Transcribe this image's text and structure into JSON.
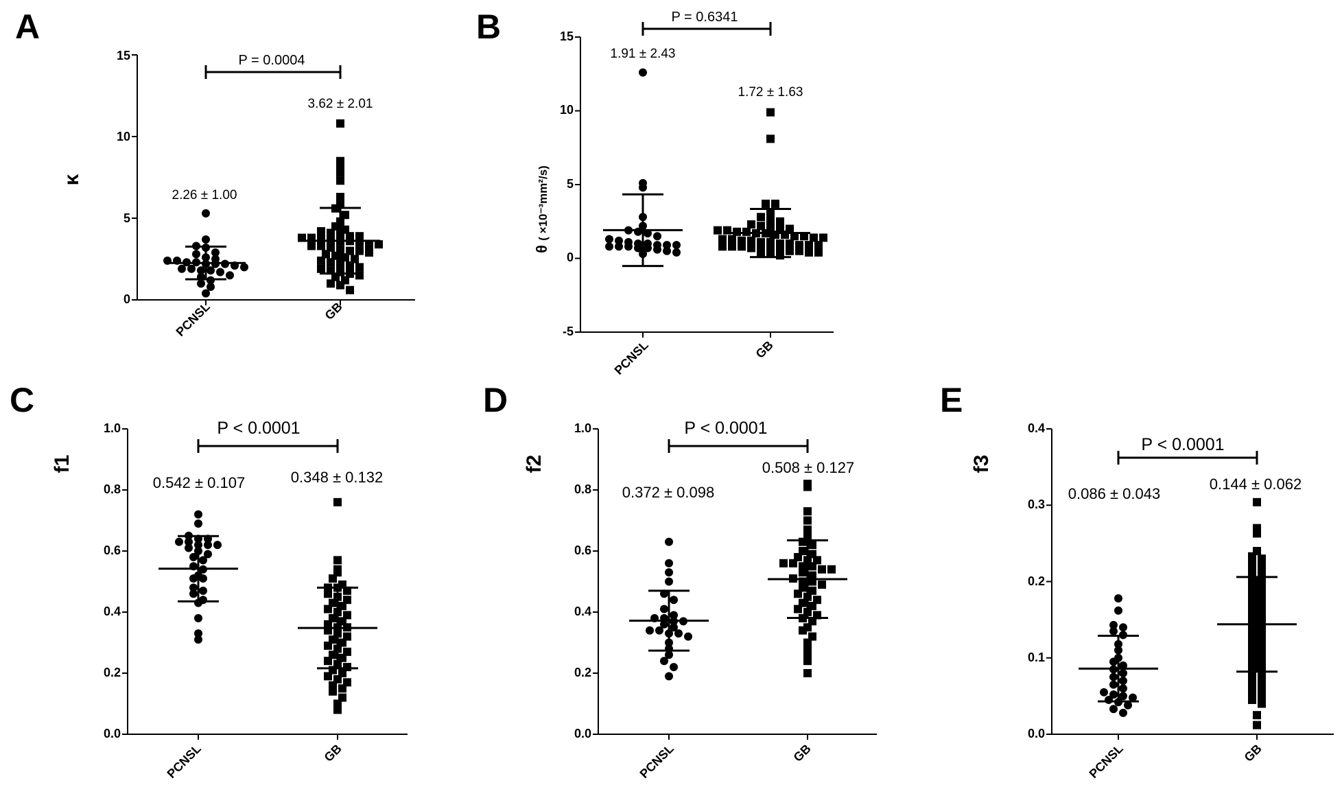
{
  "figure": {
    "chart_data": [
      {
        "panel": "A",
        "type": "scatter",
        "ylabel": "κ",
        "ylim": [
          0,
          15
        ],
        "yticks": [
          "0",
          "5",
          "10",
          "15"
        ],
        "categories": [
          "PCNSL",
          "GB"
        ],
        "p_value": "P = 0.0004",
        "series": [
          {
            "name": "PCNSL",
            "marker": "circle",
            "mean": 2.26,
            "sd": 1.0,
            "annotation": "2.26 ± 1.00",
            "values": [
              5.3,
              3.7,
              3.3,
              3.2,
              2.9,
              2.8,
              2.6,
              2.5,
              2.4,
              2.4,
              2.3,
              2.3,
              2.2,
              2.2,
              2.2,
              2.1,
              2.0,
              1.9,
              1.9,
              1.8,
              1.8,
              1.7,
              1.5,
              1.4,
              1.2,
              1.0,
              0.8,
              0.4
            ]
          },
          {
            "name": "GB",
            "marker": "square",
            "mean": 3.62,
            "sd": 2.01,
            "annotation": "3.62 ± 2.01",
            "values": [
              10.8,
              8.5,
              8.2,
              7.8,
              7.3,
              6.3,
              5.9,
              5.6,
              5.2,
              4.8,
              4.5,
              4.3,
              4.2,
              4.1,
              4.0,
              3.9,
              3.9,
              3.8,
              3.8,
              3.7,
              3.7,
              3.6,
              3.6,
              3.5,
              3.4,
              3.4,
              3.3,
              3.3,
              3.2,
              3.1,
              3.0,
              3.0,
              2.9,
              2.8,
              2.7,
              2.6,
              2.5,
              2.4,
              2.3,
              2.2,
              2.1,
              2.0,
              1.9,
              1.8,
              1.7,
              1.6,
              1.5,
              1.4,
              1.2,
              1.0,
              0.9,
              0.6
            ]
          }
        ]
      },
      {
        "panel": "B",
        "type": "scatter",
        "ylabel_symbol": "θ",
        "ylabel_unit": "( ×10⁻³mm²/s)",
        "ylim": [
          -5,
          15
        ],
        "yticks": [
          "-5",
          "0",
          "5",
          "10",
          "15"
        ],
        "categories": [
          "PCNSL",
          "GB"
        ],
        "p_value": "P = 0.6341",
        "series": [
          {
            "name": "PCNSL",
            "marker": "circle",
            "mean": 1.91,
            "sd": 2.43,
            "annotation": "1.91 ± 2.43",
            "values": [
              12.6,
              5.1,
              4.8,
              2.8,
              2.2,
              1.9,
              1.8,
              1.7,
              1.5,
              1.3,
              1.2,
              1.1,
              1.0,
              1.0,
              0.9,
              0.9,
              0.9,
              0.8,
              0.8,
              0.8,
              0.7,
              0.7,
              0.6,
              0.5,
              0.4,
              0.3
            ]
          },
          {
            "name": "GB",
            "marker": "square",
            "mean": 1.72,
            "sd": 1.63,
            "annotation": "1.72 ± 1.63",
            "values": [
              9.9,
              8.1,
              3.7,
              3.7,
              3.0,
              2.8,
              2.6,
              2.5,
              2.3,
              2.2,
              2.1,
              2.0,
              2.0,
              1.9,
              1.9,
              1.8,
              1.8,
              1.7,
              1.7,
              1.6,
              1.6,
              1.5,
              1.5,
              1.4,
              1.4,
              1.3,
              1.3,
              1.2,
              1.2,
              1.1,
              1.1,
              1.0,
              1.0,
              0.9,
              0.9,
              0.9,
              0.8,
              0.8,
              0.8,
              0.7,
              0.7,
              0.6,
              0.6,
              0.5,
              0.5,
              0.4,
              0.4,
              0.3,
              0.3,
              0.2
            ]
          }
        ]
      },
      {
        "panel": "C",
        "type": "scatter",
        "ylabel": "f1",
        "ylim": [
          0,
          1
        ],
        "yticks": [
          "0.0",
          "0.2",
          "0.4",
          "0.6",
          "0.8",
          "1.0"
        ],
        "categories": [
          "PCNSL",
          "GB"
        ],
        "p_value": "P < 0.0001",
        "series": [
          {
            "name": "PCNSL",
            "marker": "circle",
            "mean": 0.542,
            "sd": 0.107,
            "annotation": "0.542 ± 0.107",
            "values": [
              0.72,
              0.69,
              0.65,
              0.64,
              0.64,
              0.63,
              0.63,
              0.62,
              0.62,
              0.62,
              0.61,
              0.6,
              0.59,
              0.58,
              0.57,
              0.55,
              0.54,
              0.52,
              0.51,
              0.51,
              0.48,
              0.47,
              0.46,
              0.44,
              0.43,
              0.38,
              0.33,
              0.31
            ]
          },
          {
            "name": "GB",
            "marker": "square",
            "mean": 0.348,
            "sd": 0.132,
            "annotation": "0.348 ± 0.132",
            "values": [
              0.76,
              0.57,
              0.54,
              0.53,
              0.51,
              0.49,
              0.48,
              0.48,
              0.47,
              0.46,
              0.45,
              0.44,
              0.43,
              0.42,
              0.41,
              0.4,
              0.39,
              0.38,
              0.37,
              0.36,
              0.35,
              0.35,
              0.34,
              0.33,
              0.32,
              0.31,
              0.3,
              0.29,
              0.28,
              0.27,
              0.26,
              0.25,
              0.24,
              0.23,
              0.22,
              0.21,
              0.2,
              0.19,
              0.18,
              0.17,
              0.16,
              0.15,
              0.14,
              0.12,
              0.1,
              0.08
            ]
          }
        ]
      },
      {
        "panel": "D",
        "type": "scatter",
        "ylabel": "f2",
        "ylim": [
          0,
          1
        ],
        "yticks": [
          "0.0",
          "0.2",
          "0.4",
          "0.6",
          "0.8",
          "1.0"
        ],
        "categories": [
          "PCNSL",
          "GB"
        ],
        "p_value": "P < 0.0001",
        "series": [
          {
            "name": "PCNSL",
            "marker": "circle",
            "mean": 0.372,
            "sd": 0.098,
            "annotation": "0.372 ± 0.098",
            "values": [
              0.63,
              0.56,
              0.53,
              0.5,
              0.46,
              0.44,
              0.41,
              0.39,
              0.38,
              0.38,
              0.37,
              0.37,
              0.36,
              0.35,
              0.34,
              0.34,
              0.33,
              0.33,
              0.32,
              0.3,
              0.28,
              0.26,
              0.24,
              0.22,
              0.19
            ]
          },
          {
            "name": "GB",
            "marker": "square",
            "mean": 0.508,
            "sd": 0.127,
            "annotation": "0.508 ± 0.127",
            "values": [
              0.82,
              0.81,
              0.73,
              0.7,
              0.67,
              0.65,
              0.63,
              0.62,
              0.6,
              0.59,
              0.58,
              0.57,
              0.57,
              0.56,
              0.56,
              0.55,
              0.55,
              0.54,
              0.54,
              0.53,
              0.52,
              0.51,
              0.5,
              0.5,
              0.49,
              0.48,
              0.47,
              0.46,
              0.45,
              0.44,
              0.43,
              0.42,
              0.41,
              0.4,
              0.39,
              0.38,
              0.37,
              0.35,
              0.34,
              0.32,
              0.3,
              0.28,
              0.26,
              0.24,
              0.2
            ]
          }
        ]
      },
      {
        "panel": "E",
        "type": "scatter",
        "ylabel": "f3",
        "ylim": [
          0,
          0.4
        ],
        "yticks": [
          "0.0",
          "0.1",
          "0.2",
          "0.3",
          "0.4"
        ],
        "categories": [
          "PCNSL",
          "GB"
        ],
        "p_value": "P < 0.0001",
        "series": [
          {
            "name": "PCNSL",
            "marker": "circle",
            "mean": 0.086,
            "sd": 0.043,
            "annotation": "0.086 ± 0.043",
            "values": [
              0.178,
              0.162,
              0.143,
              0.14,
              0.135,
              0.13,
              0.118,
              0.11,
              0.1,
              0.095,
              0.09,
              0.085,
              0.08,
              0.075,
              0.07,
              0.065,
              0.06,
              0.055,
              0.052,
              0.05,
              0.048,
              0.045,
              0.042,
              0.038,
              0.033,
              0.028
            ]
          },
          {
            "name": "GB",
            "marker": "square",
            "mean": 0.144,
            "sd": 0.062,
            "annotation": "0.144 ± 0.062",
            "values": [
              0.304,
              0.27,
              0.263,
              0.24,
              0.233,
              0.23,
              0.225,
              0.22,
              0.215,
              0.21,
              0.205,
              0.2,
              0.195,
              0.19,
              0.185,
              0.18,
              0.175,
              0.17,
              0.165,
              0.16,
              0.155,
              0.15,
              0.145,
              0.14,
              0.135,
              0.13,
              0.125,
              0.12,
              0.115,
              0.11,
              0.105,
              0.1,
              0.095,
              0.09,
              0.085,
              0.08,
              0.075,
              0.07,
              0.065,
              0.06,
              0.055,
              0.05,
              0.045,
              0.04,
              0.025,
              0.012
            ]
          }
        ]
      }
    ]
  }
}
